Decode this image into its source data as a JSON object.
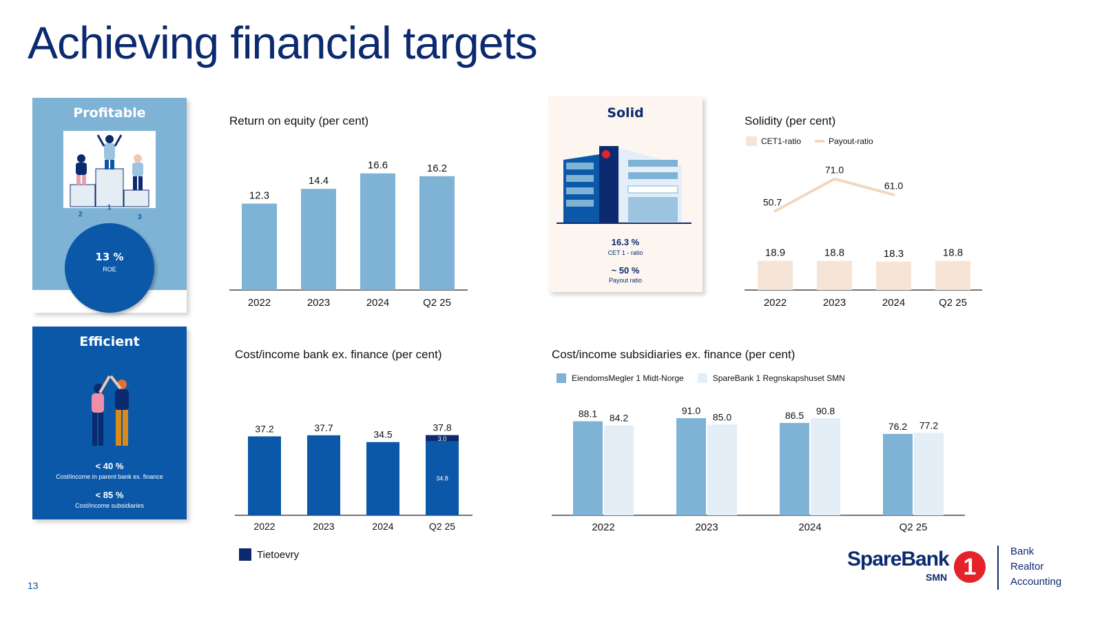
{
  "page_title": "Achieving financial targets",
  "page_number": "13",
  "colors": {
    "navy": "#0b2a6f",
    "blue": "#0b58a8",
    "light_blue": "#7fb3d5",
    "pale_blue": "#e3eef7",
    "beige": "#f6e5d6",
    "red": "#e3222a"
  },
  "cards": {
    "profitable": {
      "title": "Profitable",
      "value": "13 %",
      "label": "ROE",
      "podium": [
        "2",
        "1",
        "3"
      ]
    },
    "solid": {
      "title": "Solid",
      "value1": "16.3 %",
      "label1": "CET 1 - ratio",
      "value2": "~ 50 %",
      "label2": "Payout ratio"
    },
    "efficient": {
      "title": "Efficient",
      "value1": "< 40 %",
      "label1": "Cost/income in parent bank ex. finance",
      "value2": "< 85 %",
      "label2": "Cost/income subsidiaries"
    }
  },
  "chart_data": [
    {
      "type": "bar",
      "title": "Return on equity (per cent)",
      "categories": [
        "2022",
        "2023",
        "2024",
        "Q2 25"
      ],
      "values": [
        12.3,
        14.4,
        16.6,
        16.2
      ],
      "ylim": [
        0,
        20
      ]
    },
    {
      "type": "bar",
      "title": "Solidity (per cent)",
      "categories": [
        "2022",
        "2023",
        "2024",
        "Q2 25"
      ],
      "series": [
        {
          "name": "CET1-ratio",
          "values": [
            18.9,
            18.8,
            18.3,
            18.8
          ],
          "color": "#f6e5d6"
        },
        {
          "name": "Payout-ratio",
          "type": "line",
          "values": [
            50.7,
            71.0,
            61.0,
            null
          ],
          "color": "#f1d7bf"
        }
      ],
      "legend": "top-left"
    },
    {
      "type": "bar",
      "title": "Cost/income bank ex. finance (per cent)",
      "categories": [
        "2022",
        "2023",
        "2024",
        "Q2 25"
      ],
      "totals": [
        37.2,
        37.7,
        34.5,
        37.8
      ],
      "series": [
        {
          "name": "",
          "values": [
            37.2,
            37.7,
            34.5,
            34.8
          ],
          "color": "#0b58a8"
        },
        {
          "name": "Tietoevry",
          "values": [
            0,
            0,
            0,
            3.0
          ],
          "color": "#0b2a6f"
        }
      ],
      "ylim": [
        0,
        45
      ],
      "legend": "bottom-left"
    },
    {
      "type": "bar",
      "title": "Cost/income subsidiaries ex. finance (per cent)",
      "categories": [
        "2022",
        "2023",
        "2024",
        "Q2 25"
      ],
      "series": [
        {
          "name": "EiendomsMegler 1 Midt-Norge",
          "values": [
            88.1,
            91.0,
            86.5,
            76.2
          ],
          "color": "#7fb3d5"
        },
        {
          "name": "SpareBank 1 Regnskapshuset SMN",
          "values": [
            84.2,
            85.0,
            90.8,
            77.2
          ],
          "color": "#e3eef7"
        }
      ],
      "ylim": [
        0,
        100
      ],
      "legend": "top-left"
    }
  ],
  "logo": {
    "name": "SpareBank",
    "sub": "SMN",
    "digit": "1",
    "tags": [
      "Bank",
      "Realtor",
      "Accounting"
    ]
  }
}
